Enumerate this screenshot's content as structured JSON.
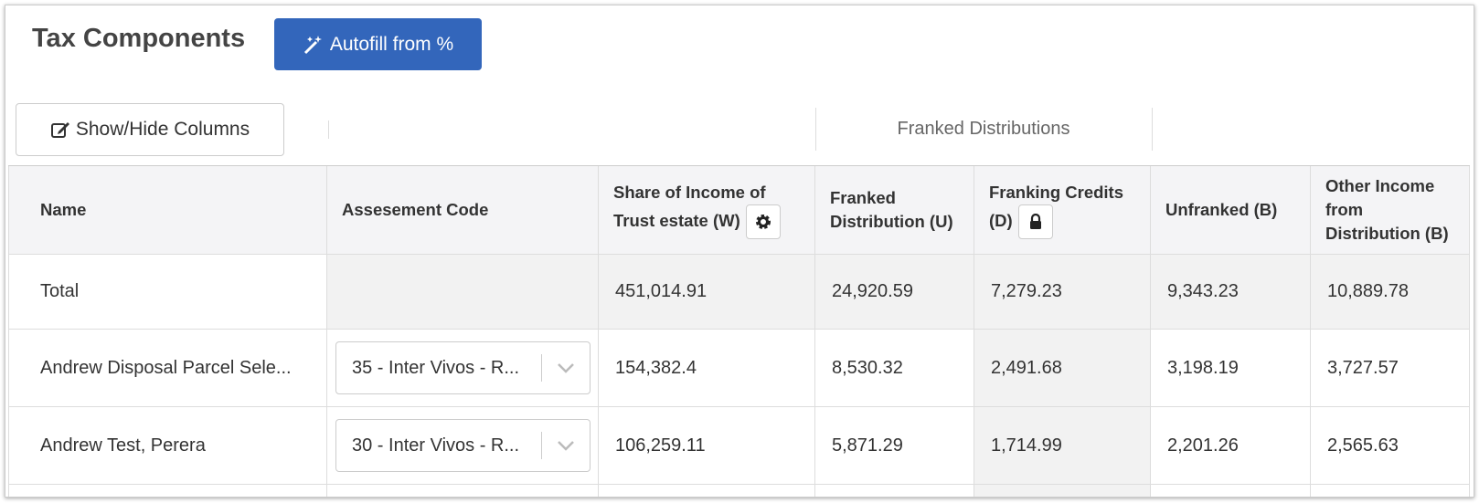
{
  "header": {
    "title": "Tax Components",
    "autofill_button": "Autofill from %"
  },
  "toolbar": {
    "columns_button": "Show/Hide Columns",
    "group_header": "Franked Distributions"
  },
  "table": {
    "columns": [
      "Name",
      "Assesement Code",
      "Share of Income of Trust estate (W)",
      "Franked Distribution (U)",
      "Franking Credits (D)",
      "Unfranked (B)",
      "Other Income from Distribution (B)"
    ],
    "rows": [
      {
        "name": "Total",
        "values": [
          "451,014.91",
          "24,920.59",
          "7,279.23",
          "9,343.23",
          "10,889.78"
        ]
      },
      {
        "name": "Andrew Disposal Parcel Sele...",
        "code": "35 - Inter Vivos - R...",
        "values": [
          "154,382.4",
          "8,530.32",
          "2,491.68",
          "3,198.19",
          "3,727.57"
        ]
      },
      {
        "name": "Andrew Test, Perera",
        "code": "30 - Inter Vivos - R...",
        "values": [
          "106,259.11",
          "5,871.29",
          "1,714.99",
          "2,201.26",
          "2,565.63"
        ]
      }
    ]
  }
}
